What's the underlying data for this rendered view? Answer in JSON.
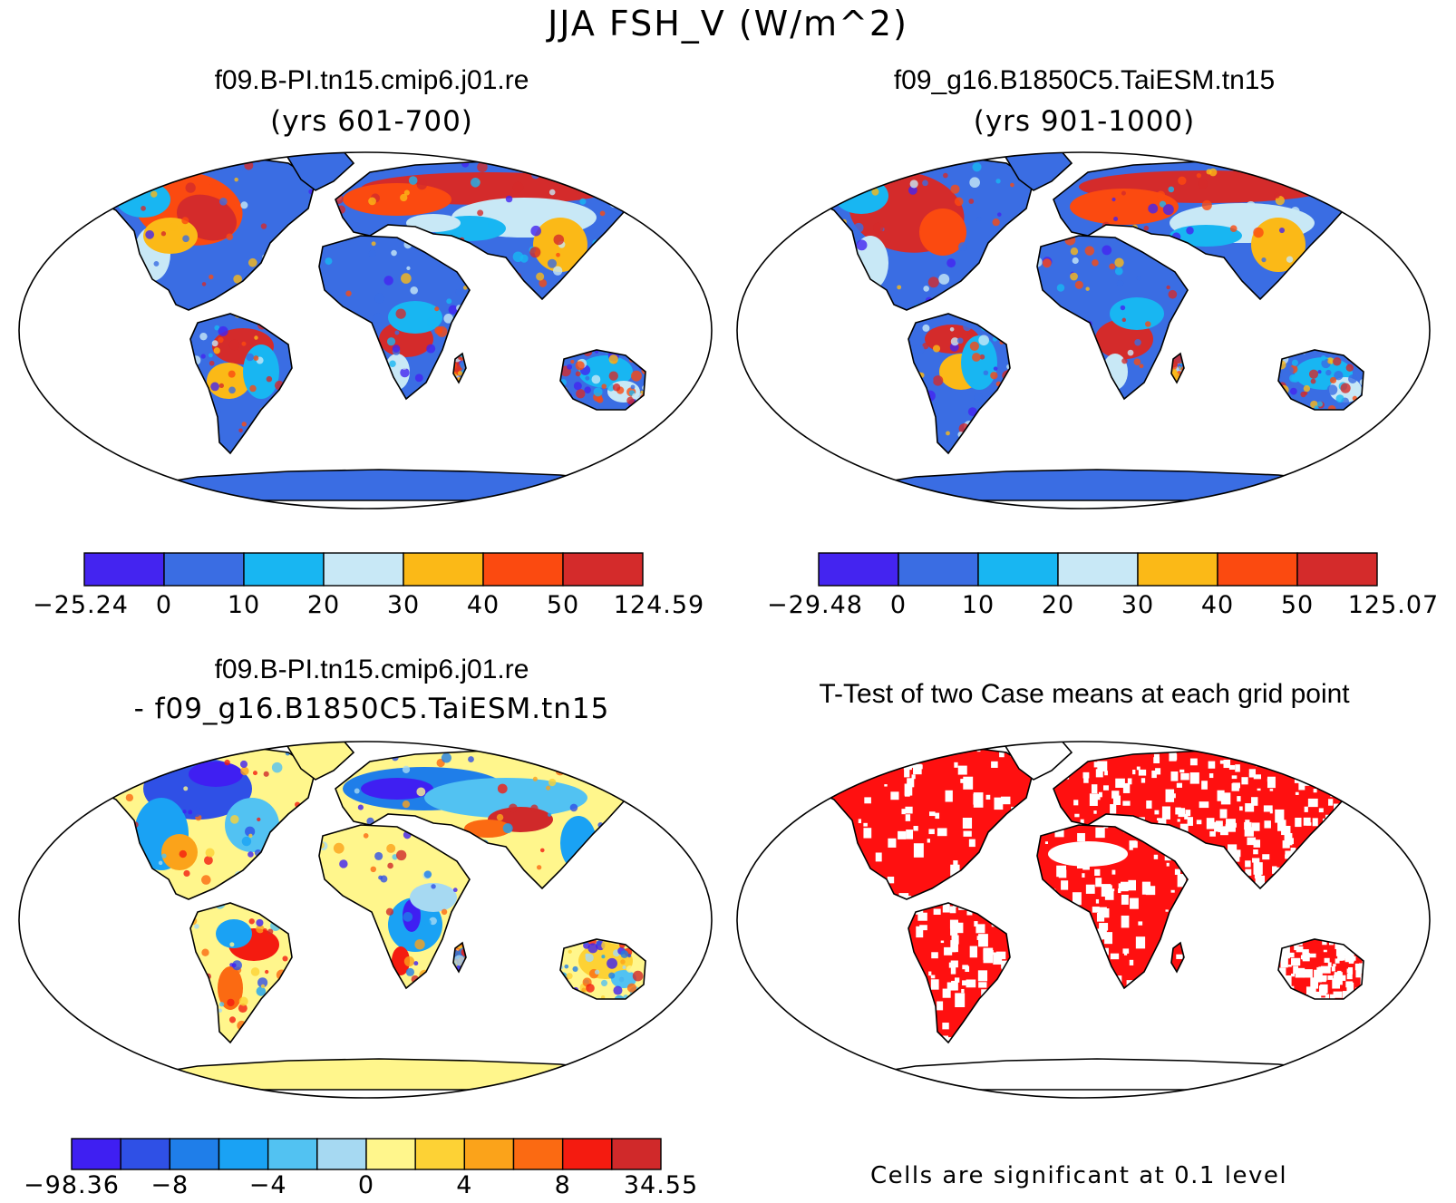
{
  "title": "JJA FSH_V (W/m^2)",
  "panels": [
    {
      "id": "case1",
      "title": "f09.B-PI.tn15.cmip6.j01.re",
      "subtitle": "(yrs 601-700)",
      "colorbar": {
        "colors": [
          "#4424f0",
          "#3a6de3",
          "#18b6f2",
          "#c8e8f6",
          "#fbb917",
          "#fb4a10",
          "#d42b2b"
        ],
        "labels": [
          "-25.24",
          "0",
          "10",
          "20",
          "30",
          "40",
          "50",
          "124.59"
        ]
      }
    },
    {
      "id": "case2",
      "title": "f09_g16.B1850C5.TaiESM.tn15",
      "subtitle": "(yrs 901-1000)",
      "colorbar": {
        "colors": [
          "#4424f0",
          "#3a6de3",
          "#18b6f2",
          "#c8e8f6",
          "#fbb917",
          "#fb4a10",
          "#d42b2b"
        ],
        "labels": [
          "-29.48",
          "0",
          "10",
          "20",
          "30",
          "40",
          "50",
          "125.07"
        ]
      }
    },
    {
      "id": "diff",
      "title": "f09.B-PI.tn15.cmip6.j01.re",
      "subtitle": "- f09_g16.B1850C5.TaiESM.tn15",
      "colorbar": {
        "colors": [
          "#3f1ff2",
          "#2f50e6",
          "#1f7ee9",
          "#1aa2f4",
          "#52c2f2",
          "#a6d9f2",
          "#fff68c",
          "#fdd235",
          "#fba31a",
          "#fb6a12",
          "#f41b10",
          "#d0292a"
        ],
        "labels": [
          "-98.36",
          "-8",
          "-4",
          "0",
          "4",
          "8",
          "34.55"
        ]
      }
    },
    {
      "id": "ttest",
      "title": "T-Test of two Case means at each grid point",
      "note": "Cells are significant at 0.1 level",
      "color": "#ff1010"
    }
  ]
}
